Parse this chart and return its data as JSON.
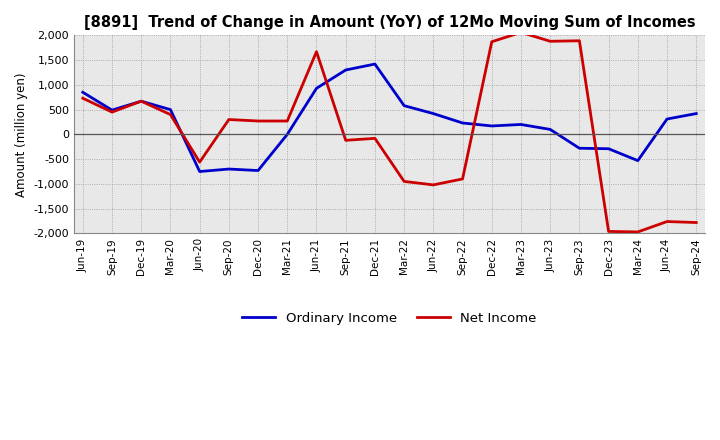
{
  "title": "[8891]  Trend of Change in Amount (YoY) of 12Mo Moving Sum of Incomes",
  "ylabel": "Amount (million yen)",
  "xlabels": [
    "Jun-19",
    "Sep-19",
    "Dec-19",
    "Mar-20",
    "Jun-20",
    "Sep-20",
    "Dec-20",
    "Mar-21",
    "Jun-21",
    "Sep-21",
    "Dec-21",
    "Mar-22",
    "Jun-22",
    "Sep-22",
    "Dec-22",
    "Mar-23",
    "Jun-23",
    "Sep-23",
    "Dec-23",
    "Mar-24",
    "Jun-24",
    "Sep-24"
  ],
  "ordinary_income": [
    850,
    490,
    670,
    500,
    -750,
    -700,
    -730,
    0,
    930,
    1300,
    1420,
    580,
    420,
    230,
    170,
    200,
    100,
    -280,
    -290,
    -530,
    310,
    420
  ],
  "net_income": [
    730,
    450,
    670,
    400,
    -560,
    300,
    270,
    270,
    1670,
    -120,
    -80,
    -950,
    -1020,
    -900,
    1870,
    2060,
    1880,
    1890,
    -1960,
    -1970,
    -1760,
    -1780
  ],
  "ordinary_color": "#0000cc",
  "net_color": "#cc0000",
  "ylim": [
    -2000,
    2000
  ],
  "yticks": [
    -2000,
    -1500,
    -1000,
    -500,
    0,
    500,
    1000,
    1500,
    2000
  ],
  "background_color": "#ffffff",
  "plot_bg_color": "#e8e8e8",
  "grid_color": "#999999",
  "legend_ordinary": "Ordinary Income",
  "legend_net": "Net Income"
}
